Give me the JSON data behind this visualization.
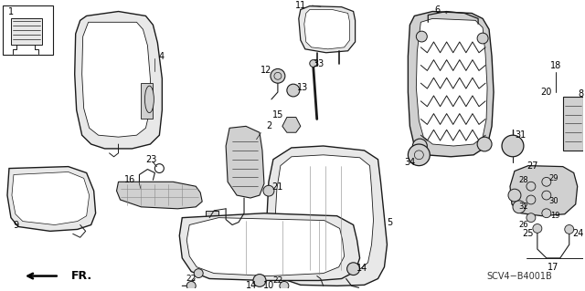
{
  "background_color": "#ffffff",
  "diagram_color": "#000000",
  "figsize": [
    6.4,
    3.19
  ],
  "dpi": 100,
  "diagram_code": "SCV4−B4001B",
  "fr_label": "FR.",
  "line_color": "#1a1a1a",
  "light_gray": "#e8e8e8",
  "mid_gray": "#d0d0d0",
  "dark_gray": "#888888"
}
